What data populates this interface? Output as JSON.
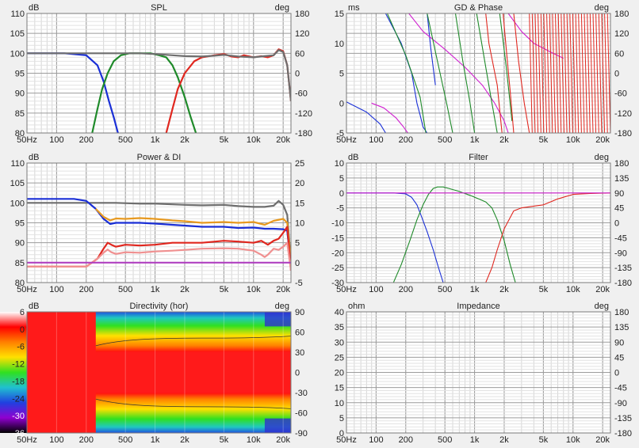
{
  "chart_data": [
    {
      "id": "spl",
      "type": "line",
      "title": "SPL",
      "left_unit": "dB",
      "right_unit": "deg",
      "y_left_ticks": [
        "110",
        "105",
        "100",
        "95",
        "90",
        "85",
        "80"
      ],
      "y_right_ticks": [
        "180",
        "120",
        "60",
        "0",
        "-60",
        "-120",
        "-180"
      ],
      "x_ticks": [
        "50Hz",
        "100",
        "200",
        "500",
        "1k",
        "2k",
        "5k",
        "10k",
        "20k"
      ],
      "xlim": [
        50,
        24000
      ],
      "ylim": [
        80,
        110
      ],
      "grid": true,
      "series": [
        {
          "color": "#1a2fd6",
          "x": [
            50,
            120,
            200,
            260,
            300,
            340,
            380,
            420
          ],
          "y": [
            100,
            100,
            99.5,
            97,
            93,
            88,
            84,
            80
          ]
        },
        {
          "color": "#1f8a2a",
          "x": [
            230,
            260,
            290,
            330,
            380,
            450,
            550,
            700,
            900,
            1100,
            1300,
            1500,
            1700,
            2000,
            2300,
            2600
          ],
          "y": [
            80,
            86,
            91,
            95,
            98,
            99.5,
            100,
            100,
            100,
            99.5,
            99,
            97,
            94,
            89,
            84,
            80
          ]
        },
        {
          "color": "#e0271f",
          "x": [
            1300,
            1500,
            1700,
            2000,
            2500,
            3000,
            4000,
            5000,
            6000,
            7000,
            8000,
            10000,
            12000,
            14000,
            16000,
            18000,
            20000,
            22000,
            24000
          ],
          "y": [
            80,
            86,
            91,
            95,
            98,
            99,
            99.5,
            99.8,
            99.2,
            99,
            99.5,
            99,
            99.3,
            99,
            99.5,
            101,
            100.5,
            97,
            88
          ]
        },
        {
          "color": "#6e6e6e",
          "x": [
            50,
            200,
            400,
            700,
            1000,
            1500,
            2000,
            3000,
            4000,
            5000,
            7000,
            10000,
            13000,
            16000,
            18000,
            20000,
            22000,
            24000
          ],
          "y": [
            100,
            100,
            100,
            100,
            99.8,
            99.5,
            99.3,
            99.2,
            99.4,
            99.6,
            99.2,
            99,
            99.3,
            99.5,
            100.8,
            100.3,
            97,
            88
          ]
        }
      ]
    },
    {
      "id": "gd",
      "type": "line",
      "title": "GD & Phase",
      "left_unit": "ms",
      "right_unit": "deg",
      "y_left_ticks": [
        "15",
        "10",
        "5",
        "0",
        "-5"
      ],
      "y_right_ticks": [
        "180",
        "120",
        "60",
        "0",
        "-60",
        "-120",
        "-180"
      ],
      "x_ticks": [
        "50Hz",
        "100",
        "200",
        "500",
        "1k",
        "2k",
        "5k",
        "10k",
        "20k"
      ],
      "xlim": [
        50,
        24000
      ],
      "ylim": [
        -5,
        15
      ],
      "grid": true,
      "series": [
        {
          "color": "#1a2fd6",
          "x": [
            50,
            80,
            110,
            125
          ],
          "y": [
            0.2,
            -1.5,
            -3.5,
            -5
          ]
        },
        {
          "color": "#1a2fd6",
          "x": [
            125,
            180,
            230,
            260,
            280,
            300,
            330
          ],
          "y": [
            15,
            10,
            5,
            0,
            -2,
            -4,
            -5
          ]
        },
        {
          "color": "#1a2fd6",
          "x": [
            330,
            360,
            400
          ],
          "y": [
            15,
            9,
            3
          ]
        },
        {
          "color": "#d020d0",
          "x": [
            90,
            120,
            160,
            190,
            210
          ],
          "y": [
            0,
            -0.8,
            -2.5,
            -4,
            -5
          ]
        },
        {
          "color": "#d020d0",
          "x": [
            215,
            300,
            500,
            800,
            1200,
            1600,
            2000,
            2200
          ],
          "y": [
            15,
            12,
            9,
            6,
            3,
            0,
            -3,
            -5
          ]
        },
        {
          "color": "#d020d0",
          "x": [
            2200,
            3000,
            4000,
            6000,
            8000
          ],
          "y": [
            15,
            12,
            10,
            8.5,
            7.5
          ]
        },
        {
          "color": "#1f8a2a",
          "x": [
            130,
            200,
            280,
            320
          ],
          "y": [
            15,
            8,
            1,
            -5
          ]
        },
        {
          "color": "#1f8a2a",
          "x": [
            330,
            420,
            520,
            600
          ],
          "y": [
            15,
            7,
            0,
            -5
          ]
        },
        {
          "color": "#1f8a2a",
          "x": [
            640,
            760,
            900,
            1000
          ],
          "y": [
            15,
            7,
            0,
            -5
          ]
        },
        {
          "color": "#1f8a2a",
          "x": [
            1050,
            1300,
            1500,
            1700
          ],
          "y": [
            15,
            6,
            0,
            -5
          ]
        },
        {
          "color": "#1f8a2a",
          "x": [
            1800,
            2100,
            2400
          ],
          "y": [
            15,
            6,
            -3
          ]
        },
        {
          "color": "#e0271f",
          "x": [
            1300,
            1400,
            1700,
            1900
          ],
          "y": [
            15,
            10,
            3,
            -5
          ]
        },
        {
          "color": "#e0271f",
          "x": [
            1950,
            2100,
            2300,
            2500
          ],
          "y": [
            15,
            9,
            2,
            -5
          ]
        },
        {
          "color": "#e0271f",
          "x": [
            2500,
            2800,
            3200,
            3600
          ],
          "y": [
            15,
            7,
            0,
            -5
          ]
        }
      ]
    },
    {
      "id": "power",
      "type": "line",
      "title": "Power & DI",
      "left_unit": "dB",
      "right_unit": "",
      "y_left_ticks": [
        "110",
        "105",
        "100",
        "95",
        "90",
        "85",
        "80"
      ],
      "y_right_ticks": [
        "25",
        "20",
        "15",
        "10",
        "5",
        "0",
        "-5"
      ],
      "x_ticks": [
        "50Hz",
        "100",
        "200",
        "500",
        "1k",
        "2k",
        "5k",
        "10k",
        "20k"
      ],
      "xlim": [
        50,
        24000
      ],
      "ylim": [
        80,
        110
      ],
      "grid": true,
      "series": [
        {
          "color": "#6e6e6e",
          "x": [
            50,
            200,
            400,
            700,
            1000,
            2000,
            3000,
            5000,
            7000,
            10000,
            13000,
            16000,
            18000,
            20000,
            22000,
            24000
          ],
          "y": [
            100,
            100,
            100,
            99.8,
            99.8,
            99.5,
            99.4,
            99.5,
            99.2,
            99,
            99,
            99.3,
            100.5,
            99.5,
            97,
            85
          ]
        },
        {
          "color": "#1a2fd6",
          "x": [
            50,
            150,
            200,
            250,
            300,
            350,
            400,
            500,
            700,
            1000,
            1500,
            2000,
            3000,
            5000,
            7000,
            10000,
            13000,
            16000,
            20000,
            22000,
            24000
          ],
          "y": [
            101,
            101,
            100.5,
            98.5,
            96,
            94.7,
            95,
            95,
            95,
            94.8,
            94.5,
            94.3,
            94,
            94,
            93.7,
            93.8,
            93.5,
            93.5,
            93.4,
            93,
            84
          ]
        },
        {
          "color": "#e89a20",
          "x": [
            250,
            300,
            350,
            400,
            500,
            700,
            1000,
            1500,
            2000,
            3000,
            5000,
            7000,
            10000,
            13000,
            16000,
            20000,
            22000,
            24000
          ],
          "y": [
            98.5,
            96.5,
            95.6,
            96.1,
            96,
            96.2,
            96,
            95.6,
            95.4,
            95,
            95.2,
            95,
            95.2,
            94.5,
            95.5,
            96,
            95,
            85
          ]
        },
        {
          "color": "#e0271f",
          "x": [
            50,
            200,
            260,
            300,
            330,
            360,
            400,
            500,
            700,
            1000,
            1500,
            2000,
            3000,
            5000,
            7000,
            10000,
            12000,
            14000,
            16000,
            18000,
            20000,
            22000,
            24000
          ],
          "y": [
            84,
            84,
            86,
            88.5,
            90,
            89.5,
            89,
            89.5,
            89.3,
            89.5,
            90,
            90,
            90,
            90.5,
            90.3,
            90,
            90.5,
            89.5,
            90.5,
            91,
            92.5,
            94,
            83
          ]
        },
        {
          "color": "#f09090",
          "x": [
            50,
            200,
            260,
            300,
            330,
            360,
            400,
            500,
            700,
            1000,
            1500,
            2000,
            3000,
            5000,
            7000,
            10000,
            12000,
            13000,
            14000,
            16000,
            18000,
            20000,
            22000,
            24000
          ],
          "y": [
            84,
            84,
            86,
            87.5,
            88.3,
            87.6,
            87.2,
            87.6,
            87.5,
            87.8,
            88,
            88.2,
            88.5,
            88.6,
            88.5,
            88,
            87,
            86.4,
            87,
            88.5,
            88.2,
            89,
            90,
            83
          ]
        },
        {
          "color": "#b040c0",
          "x": [
            50,
            24000
          ],
          "y": [
            85,
            85
          ]
        }
      ]
    },
    {
      "id": "filter",
      "type": "line",
      "title": "Filter",
      "left_unit": "dB",
      "right_unit": "deg",
      "y_left_ticks": [
        "10",
        "5",
        "0",
        "-5",
        "-10",
        "-15",
        "-20",
        "-25",
        "-30"
      ],
      "y_right_ticks": [
        "180",
        "135",
        "90",
        "45",
        "0",
        "-45",
        "-90",
        "-135",
        "-180"
      ],
      "x_ticks": [
        "50Hz",
        "100",
        "200",
        "500",
        "1k",
        "2k",
        "5k",
        "10k",
        "20k"
      ],
      "xlim": [
        50,
        24000
      ],
      "ylim": [
        -30,
        10
      ],
      "grid": true,
      "series": [
        {
          "color": "#1a2fd6",
          "x": [
            50,
            150,
            200,
            230,
            260,
            290,
            330,
            380,
            430,
            480
          ],
          "y": [
            0,
            0,
            -0.3,
            -1.5,
            -4,
            -8,
            -13,
            -19,
            -25,
            -30
          ]
        },
        {
          "color": "#1f8a2a",
          "x": [
            150,
            180,
            220,
            260,
            300,
            340,
            380,
            420,
            480,
            550,
            700,
            900,
            1100,
            1300,
            1500,
            1700,
            2000,
            2300,
            2600
          ],
          "y": [
            -30,
            -24,
            -16,
            -9,
            -4,
            -0.5,
            1.5,
            2,
            2,
            1.5,
            0.5,
            -0.8,
            -2,
            -3,
            -5,
            -9,
            -16,
            -24,
            -30
          ]
        },
        {
          "color": "#e0271f",
          "x": [
            1300,
            1500,
            1700,
            2000,
            2500,
            3000,
            5000,
            7000,
            10000,
            15000,
            24000
          ],
          "y": [
            -30,
            -25,
            -19,
            -12,
            -6,
            -5,
            -4,
            -2,
            -0.5,
            -0.2,
            0
          ]
        },
        {
          "color": "#d020d0",
          "x": [
            50,
            24000
          ],
          "y": [
            0,
            0
          ]
        }
      ]
    },
    {
      "id": "directivity",
      "type": "heatmap",
      "title": "Directivity (hor)",
      "left_unit": "dB",
      "right_unit": "deg",
      "y_left_ticks": [
        "6",
        "0",
        "-6",
        "-12",
        "-18",
        "-24",
        "-30",
        "-36"
      ],
      "y_right_ticks": [
        "90",
        "60",
        "30",
        "0",
        "-30",
        "-60",
        "-90"
      ],
      "x_ticks": [
        "50Hz",
        "100",
        "200",
        "500",
        "1k",
        "2k",
        "5k",
        "10k",
        "20k"
      ],
      "colorbar": [
        "#ffffff",
        "#ff0000",
        "#ff8000",
        "#ffe000",
        "#30e020",
        "#20c0d0",
        "#2040e0",
        "#9000d0",
        "#000000"
      ]
    },
    {
      "id": "impedance",
      "type": "line",
      "title": "Impedance",
      "left_unit": "ohm",
      "right_unit": "deg",
      "y_left_ticks": [
        "40",
        "35",
        "30",
        "25",
        "20",
        "15",
        "10",
        "5",
        "0"
      ],
      "y_right_ticks": [
        "180",
        "135",
        "90",
        "45",
        "0",
        "-45",
        "-90",
        "-135",
        "-180"
      ],
      "x_ticks": [
        "50Hz",
        "100",
        "200",
        "500",
        "1k",
        "2k",
        "5k",
        "10k",
        "20k"
      ],
      "xlim": [
        50,
        24000
      ],
      "ylim": [
        0,
        40
      ],
      "grid": true,
      "series": []
    }
  ]
}
